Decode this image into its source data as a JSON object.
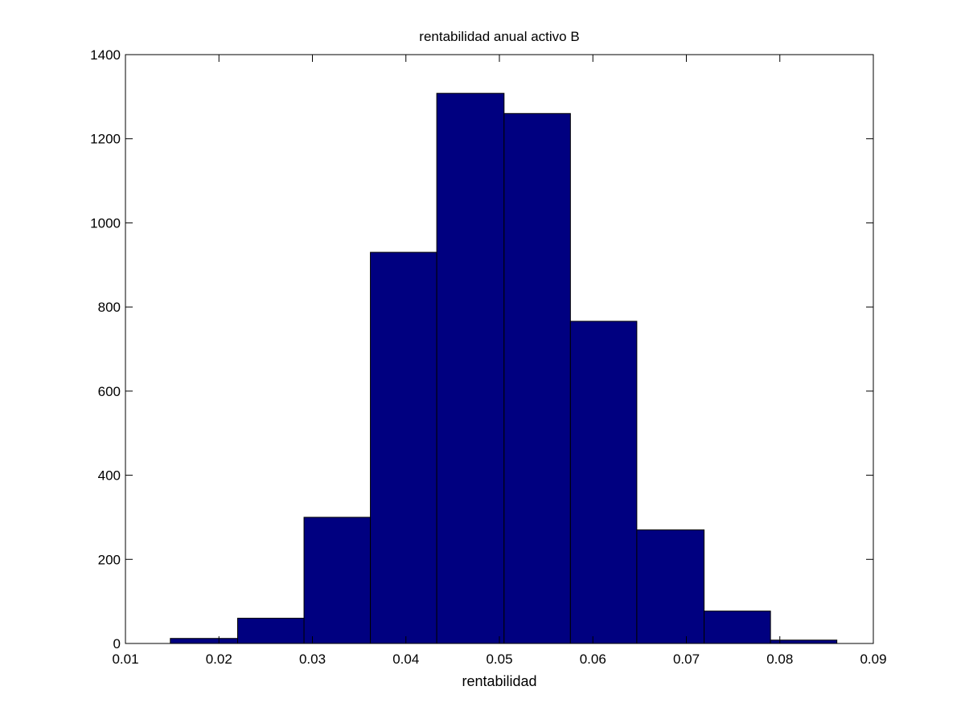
{
  "chart_data": {
    "type": "bar",
    "title": "rentabilidad anual activo B",
    "xlabel": "rentabilidad",
    "ylabel": "",
    "bin_edges": [
      0.0148,
      0.022,
      0.0291,
      0.0362,
      0.0433,
      0.0505,
      0.0576,
      0.0647,
      0.0719,
      0.079,
      0.0861
    ],
    "values": [
      12,
      60,
      300,
      930,
      1308,
      1260,
      766,
      270,
      77,
      8
    ],
    "xlim": [
      0.01,
      0.09
    ],
    "ylim": [
      0,
      1400
    ],
    "xticks": [
      0.01,
      0.02,
      0.03,
      0.04,
      0.05,
      0.06,
      0.07,
      0.08,
      0.09
    ],
    "xtick_labels": [
      "0.01",
      "0.02",
      "0.03",
      "0.04",
      "0.05",
      "0.06",
      "0.07",
      "0.08",
      "0.09"
    ],
    "yticks": [
      0,
      200,
      400,
      600,
      800,
      1000,
      1200,
      1400
    ],
    "ytick_labels": [
      "0",
      "200",
      "400",
      "600",
      "800",
      "1000",
      "1200",
      "1400"
    ],
    "grid": false,
    "bar_color": "#000080"
  }
}
